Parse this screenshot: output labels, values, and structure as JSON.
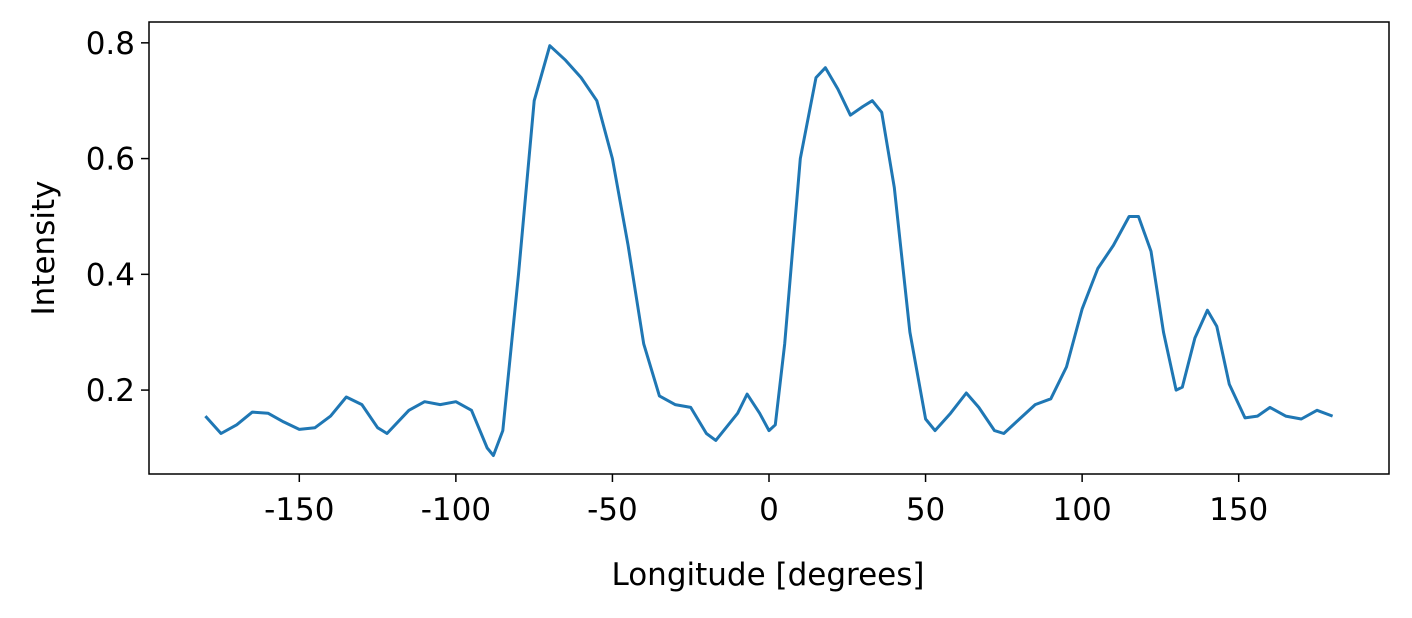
{
  "chart_data": {
    "type": "line",
    "xlabel": "Longitude [degrees]",
    "ylabel": "Intensity",
    "xlim": [
      -198,
      198
    ],
    "ylim": [
      0.055,
      0.836
    ],
    "xticks": [
      -150,
      -100,
      -50,
      0,
      50,
      100,
      150
    ],
    "yticks": [
      0.2,
      0.4,
      0.6,
      0.8
    ],
    "series": [
      {
        "color": "#1f77b4",
        "x": [
          -180,
          -175,
          -170,
          -165,
          -160,
          -155,
          -150,
          -145,
          -140,
          -135,
          -130,
          -125,
          -122,
          -115,
          -110,
          -105,
          -100,
          -95,
          -90,
          -88,
          -85,
          -80,
          -75,
          -70,
          -65,
          -60,
          -55,
          -50,
          -45,
          -40,
          -35,
          -30,
          -25,
          -20,
          -17,
          -10,
          -7,
          -3,
          0,
          2,
          5,
          10,
          15,
          18,
          22,
          26,
          30,
          33,
          36,
          40,
          45,
          50,
          53,
          58,
          63,
          67,
          72,
          75,
          80,
          85,
          90,
          95,
          100,
          105,
          110,
          115,
          118,
          122,
          126,
          130,
          132,
          136,
          140,
          143,
          147,
          152,
          156,
          160,
          165,
          170,
          175,
          180
        ],
        "values": [
          0.155,
          0.125,
          0.14,
          0.162,
          0.16,
          0.145,
          0.132,
          0.135,
          0.155,
          0.188,
          0.175,
          0.135,
          0.125,
          0.165,
          0.18,
          0.175,
          0.18,
          0.165,
          0.1,
          0.087,
          0.13,
          0.4,
          0.7,
          0.795,
          0.77,
          0.74,
          0.7,
          0.6,
          0.45,
          0.28,
          0.19,
          0.175,
          0.17,
          0.125,
          0.113,
          0.16,
          0.193,
          0.16,
          0.13,
          0.14,
          0.28,
          0.6,
          0.74,
          0.757,
          0.72,
          0.675,
          0.69,
          0.7,
          0.68,
          0.55,
          0.3,
          0.15,
          0.13,
          0.16,
          0.195,
          0.17,
          0.13,
          0.125,
          0.15,
          0.175,
          0.185,
          0.24,
          0.34,
          0.41,
          0.45,
          0.5,
          0.5,
          0.44,
          0.3,
          0.2,
          0.205,
          0.29,
          0.338,
          0.31,
          0.21,
          0.152,
          0.155,
          0.17,
          0.155,
          0.15,
          0.165,
          0.155
        ]
      }
    ]
  }
}
